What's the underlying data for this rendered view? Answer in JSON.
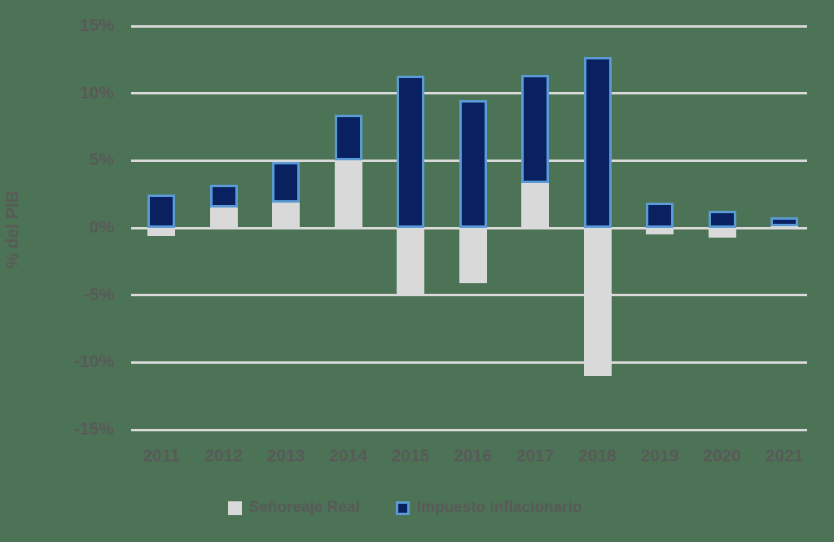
{
  "chart": {
    "background_color": "#4C7355",
    "text_color": "#595959",
    "gridline_color": "#D9D9D9"
  },
  "chart_data": {
    "type": "bar",
    "stacked": true,
    "title": "",
    "xlabel": "",
    "ylabel": "% del PIB",
    "categories": [
      "2011",
      "2012",
      "2013",
      "2014",
      "2015",
      "2016",
      "2017",
      "2018",
      "2019",
      "2020",
      "2021"
    ],
    "series": [
      {
        "name": "Señoreaje Real",
        "color": "#D9D9D9",
        "border_color": "",
        "values": [
          -0.6,
          1.5,
          1.9,
          5.0,
          -4.9,
          -4.1,
          3.3,
          -11.0,
          -0.5,
          -0.7,
          0.1
        ]
      },
      {
        "name": "Impuesto inflacionario",
        "color": "#0A2161",
        "border_color": "#5B9BD5",
        "values": [
          2.5,
          1.7,
          3.0,
          3.4,
          11.3,
          9.5,
          8.1,
          12.7,
          1.9,
          1.3,
          0.7
        ]
      }
    ],
    "ylim": [
      -15,
      15
    ],
    "ytick_step": 5,
    "ytick_labels": [
      "15%",
      "10%",
      "5%",
      "0%",
      "-5%",
      "-10%",
      "-15%"
    ],
    "grid": true,
    "legend_position": "bottom"
  }
}
